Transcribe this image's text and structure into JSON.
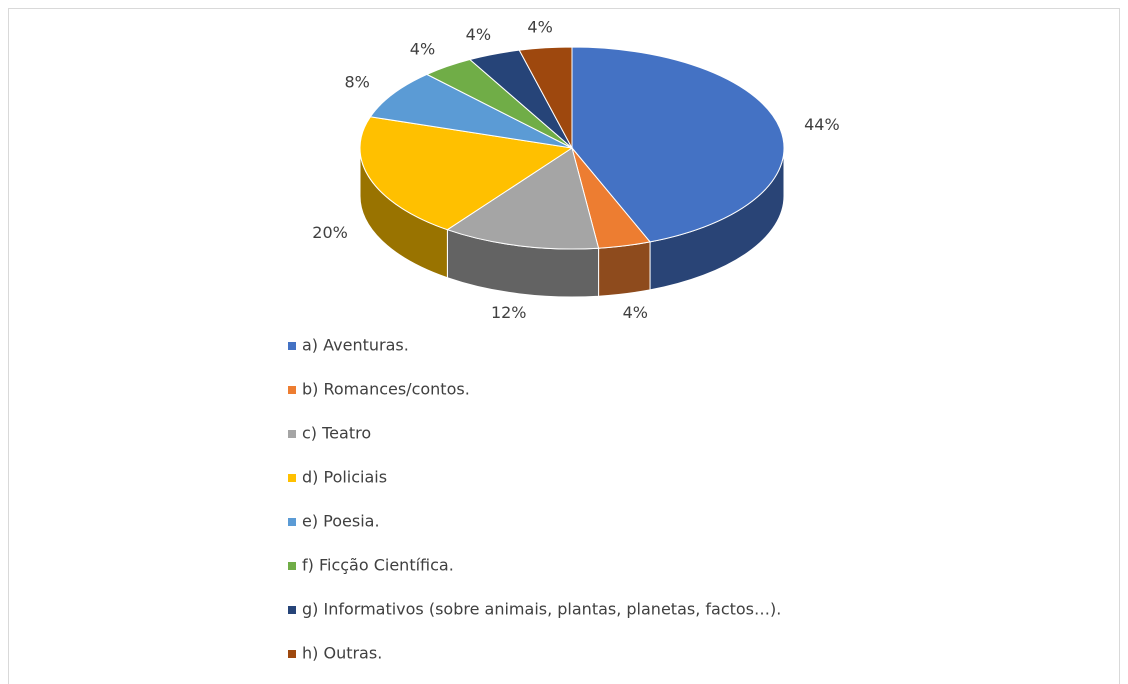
{
  "chart_data": {
    "type": "pie",
    "categories": [
      "a) Aventuras.",
      "b) Romances/contos.",
      "c) Teatro",
      "d) Policiais",
      "e) Poesia.",
      "f) Ficção Científica.",
      "g) Informativos (sobre animais, plantas, planetas, factos…).",
      "h) Outras."
    ],
    "values": [
      44,
      4,
      12,
      20,
      8,
      4,
      4,
      4
    ],
    "value_labels": [
      "44%",
      "4%",
      "12%",
      "20%",
      "8%",
      "4%",
      "4%",
      "4%"
    ],
    "colors": [
      "#4472c4",
      "#ed7d31",
      "#a5a5a5",
      "#ffc000",
      "#5b9bd5",
      "#70ad47",
      "#264478",
      "#9e480e"
    ],
    "legend": "bottom"
  }
}
